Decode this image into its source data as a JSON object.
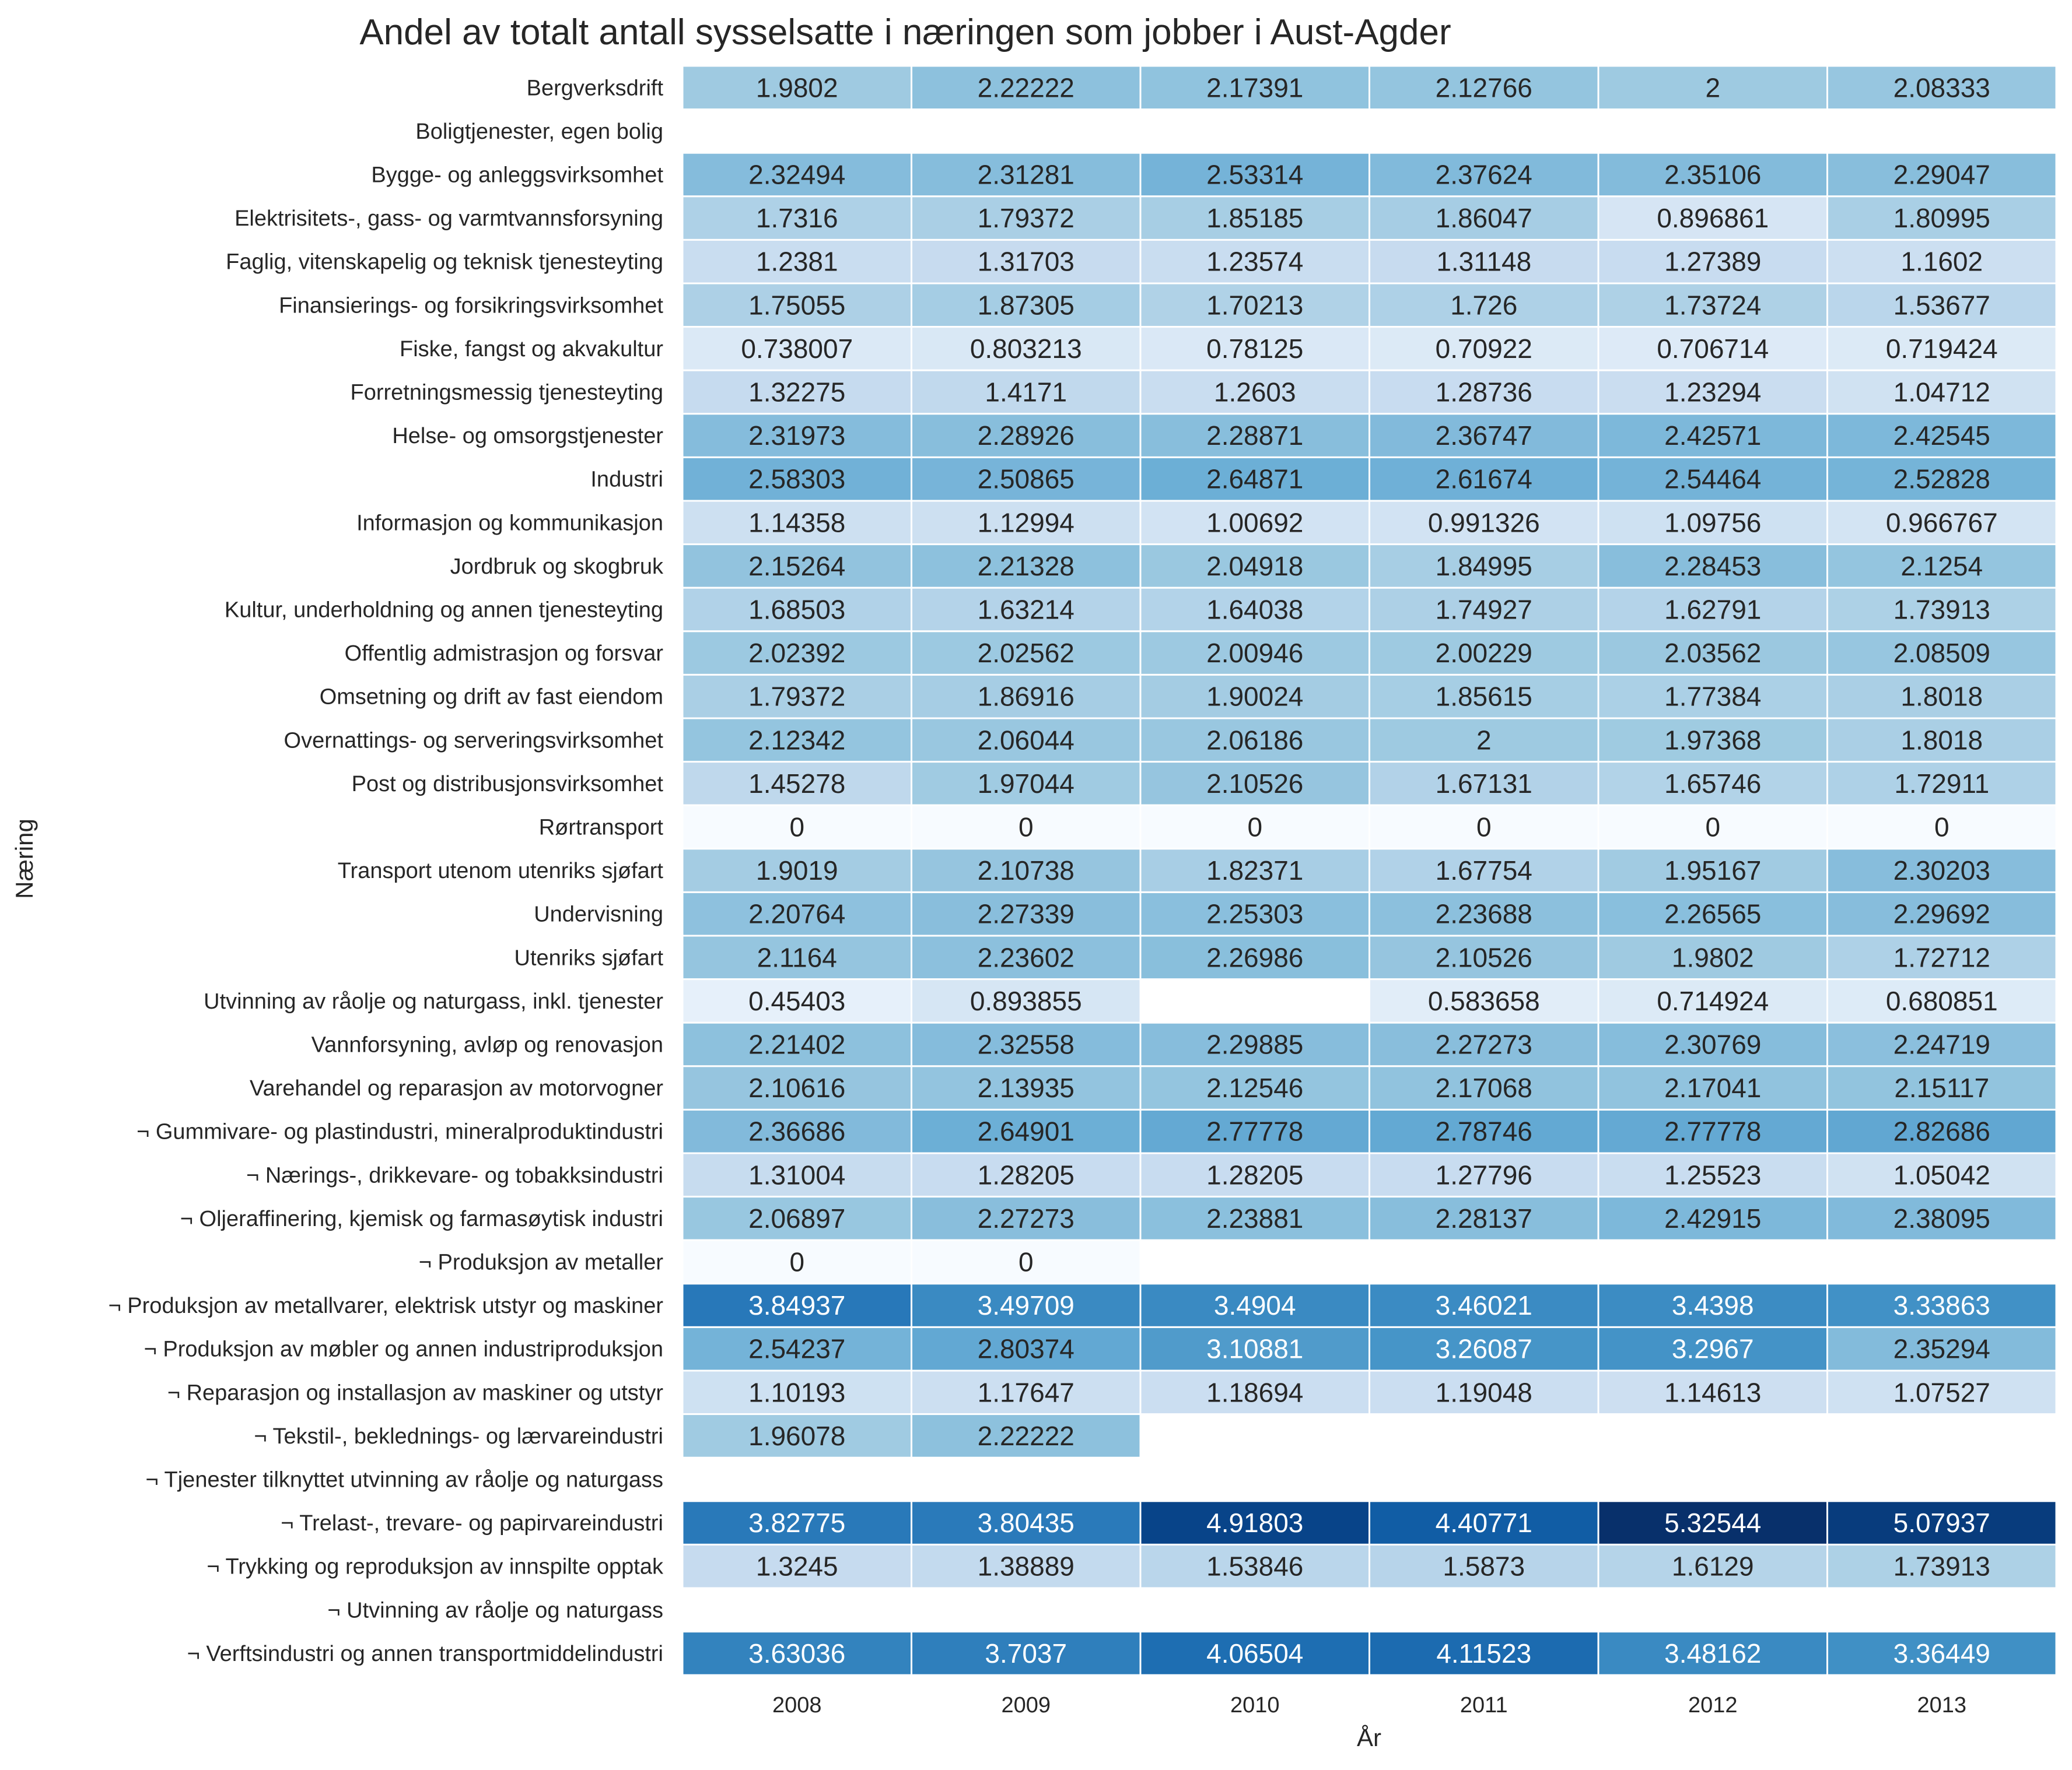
{
  "chart_data": {
    "type": "heatmap",
    "title": "Andel av totalt antall sysselsatte i næringen som jobber i Aust-Agder",
    "xlabel": "År",
    "ylabel": "Næring",
    "colormap": "Blues",
    "value_range": [
      0,
      5.32544
    ],
    "x": [
      "2008",
      "2009",
      "2010",
      "2011",
      "2012",
      "2013"
    ],
    "rows": [
      {
        "label": "Bergverksdrift",
        "values": [
          "1.9802",
          "2.22222",
          "2.17391",
          "2.12766",
          "2",
          "2.08333"
        ]
      },
      {
        "label": "Boligtjenester, egen bolig",
        "values": [
          null,
          null,
          null,
          null,
          null,
          null
        ]
      },
      {
        "label": "Bygge- og anleggsvirksomhet",
        "values": [
          "2.32494",
          "2.31281",
          "2.53314",
          "2.37624",
          "2.35106",
          "2.29047"
        ]
      },
      {
        "label": "Elektrisitets-, gass- og varmtvannsforsyning",
        "values": [
          "1.7316",
          "1.79372",
          "1.85185",
          "1.86047",
          "0.896861",
          "1.80995"
        ]
      },
      {
        "label": "Faglig, vitenskapelig og teknisk tjenesteyting",
        "values": [
          "1.2381",
          "1.31703",
          "1.23574",
          "1.31148",
          "1.27389",
          "1.1602"
        ]
      },
      {
        "label": "Finansierings- og forsikringsvirksomhet",
        "values": [
          "1.75055",
          "1.87305",
          "1.70213",
          "1.726",
          "1.73724",
          "1.53677"
        ]
      },
      {
        "label": "Fiske, fangst og akvakultur",
        "values": [
          "0.738007",
          "0.803213",
          "0.78125",
          "0.70922",
          "0.706714",
          "0.719424"
        ]
      },
      {
        "label": "Forretningsmessig tjenesteyting",
        "values": [
          "1.32275",
          "1.4171",
          "1.2603",
          "1.28736",
          "1.23294",
          "1.04712"
        ]
      },
      {
        "label": "Helse- og omsorgstjenester",
        "values": [
          "2.31973",
          "2.28926",
          "2.28871",
          "2.36747",
          "2.42571",
          "2.42545"
        ]
      },
      {
        "label": "Industri",
        "values": [
          "2.58303",
          "2.50865",
          "2.64871",
          "2.61674",
          "2.54464",
          "2.52828"
        ]
      },
      {
        "label": "Informasjon og kommunikasjon",
        "values": [
          "1.14358",
          "1.12994",
          "1.00692",
          "0.991326",
          "1.09756",
          "0.966767"
        ]
      },
      {
        "label": "Jordbruk og skogbruk",
        "values": [
          "2.15264",
          "2.21328",
          "2.04918",
          "1.84995",
          "2.28453",
          "2.1254"
        ]
      },
      {
        "label": "Kultur, underholdning og annen tjenesteyting",
        "values": [
          "1.68503",
          "1.63214",
          "1.64038",
          "1.74927",
          "1.62791",
          "1.73913"
        ]
      },
      {
        "label": "Offentlig admistrasjon og forsvar",
        "values": [
          "2.02392",
          "2.02562",
          "2.00946",
          "2.00229",
          "2.03562",
          "2.08509"
        ]
      },
      {
        "label": "Omsetning og drift av fast eiendom",
        "values": [
          "1.79372",
          "1.86916",
          "1.90024",
          "1.85615",
          "1.77384",
          "1.8018"
        ]
      },
      {
        "label": "Overnattings- og serveringsvirksomhet",
        "values": [
          "2.12342",
          "2.06044",
          "2.06186",
          "2",
          "1.97368",
          "1.8018"
        ]
      },
      {
        "label": "Post og distribusjonsvirksomhet",
        "values": [
          "1.45278",
          "1.97044",
          "2.10526",
          "1.67131",
          "1.65746",
          "1.72911"
        ]
      },
      {
        "label": "Rørtransport",
        "values": [
          "0",
          "0",
          "0",
          "0",
          "0",
          "0"
        ]
      },
      {
        "label": "Transport utenom utenriks sjøfart",
        "values": [
          "1.9019",
          "2.10738",
          "1.82371",
          "1.67754",
          "1.95167",
          "2.30203"
        ]
      },
      {
        "label": "Undervisning",
        "values": [
          "2.20764",
          "2.27339",
          "2.25303",
          "2.23688",
          "2.26565",
          "2.29692"
        ]
      },
      {
        "label": "Utenriks sjøfart",
        "values": [
          "2.1164",
          "2.23602",
          "2.26986",
          "2.10526",
          "1.9802",
          "1.72712"
        ]
      },
      {
        "label": "Utvinning av råolje og naturgass, inkl. tjenester",
        "values": [
          "0.45403",
          "0.893855",
          null,
          "0.583658",
          "0.714924",
          "0.680851"
        ]
      },
      {
        "label": "Vannforsyning, avløp og renovasjon",
        "values": [
          "2.21402",
          "2.32558",
          "2.29885",
          "2.27273",
          "2.30769",
          "2.24719"
        ]
      },
      {
        "label": "Varehandel og reparasjon av motorvogner",
        "values": [
          "2.10616",
          "2.13935",
          "2.12546",
          "2.17068",
          "2.17041",
          "2.15117"
        ]
      },
      {
        "label": "¬ Gummivare- og plastindustri, mineralproduktindustri",
        "values": [
          "2.36686",
          "2.64901",
          "2.77778",
          "2.78746",
          "2.77778",
          "2.82686"
        ]
      },
      {
        "label": "¬ Nærings-, drikkevare- og tobakksindustri",
        "values": [
          "1.31004",
          "1.28205",
          "1.28205",
          "1.27796",
          "1.25523",
          "1.05042"
        ]
      },
      {
        "label": "¬ Oljeraffinering, kjemisk og farmasøytisk industri",
        "values": [
          "2.06897",
          "2.27273",
          "2.23881",
          "2.28137",
          "2.42915",
          "2.38095"
        ]
      },
      {
        "label": "¬ Produksjon av metaller",
        "values": [
          "0",
          "0",
          null,
          null,
          null,
          null
        ]
      },
      {
        "label": "¬ Produksjon av metallvarer, elektrisk utstyr og maskiner",
        "values": [
          "3.84937",
          "3.49709",
          "3.4904",
          "3.46021",
          "3.4398",
          "3.33863"
        ]
      },
      {
        "label": "¬ Produksjon av møbler og annen industriproduksjon",
        "values": [
          "2.54237",
          "2.80374",
          "3.10881",
          "3.26087",
          "3.2967",
          "2.35294"
        ]
      },
      {
        "label": "¬ Reparasjon og installasjon av maskiner og utstyr",
        "values": [
          "1.10193",
          "1.17647",
          "1.18694",
          "1.19048",
          "1.14613",
          "1.07527"
        ]
      },
      {
        "label": "¬ Tekstil-, beklednings- og lærvareindustri",
        "values": [
          "1.96078",
          "2.22222",
          null,
          null,
          null,
          null
        ]
      },
      {
        "label": "¬ Tjenester tilknyttet utvinning av råolje og naturgass",
        "values": [
          null,
          null,
          null,
          null,
          null,
          null
        ]
      },
      {
        "label": "¬ Trelast-, trevare- og papirvareindustri",
        "values": [
          "3.82775",
          "3.80435",
          "4.91803",
          "4.40771",
          "5.32544",
          "5.07937"
        ]
      },
      {
        "label": "¬ Trykking og reproduksjon av innspilte opptak",
        "values": [
          "1.3245",
          "1.38889",
          "1.53846",
          "1.5873",
          "1.6129",
          "1.73913"
        ]
      },
      {
        "label": "¬ Utvinning av råolje og naturgass",
        "values": [
          null,
          null,
          null,
          null,
          null,
          null
        ]
      },
      {
        "label": "¬ Verftsindustri og annen transportmiddelindustri",
        "values": [
          "3.63036",
          "3.7037",
          "4.06504",
          "4.11523",
          "3.48162",
          "3.36449"
        ]
      }
    ]
  }
}
